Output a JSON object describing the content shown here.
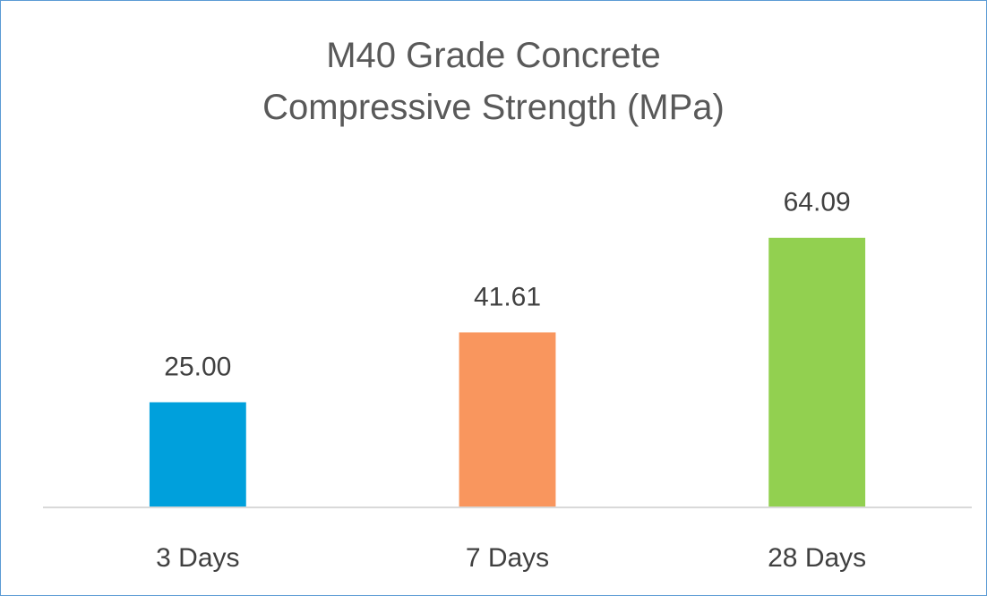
{
  "chart_data": {
    "type": "bar",
    "title": "M40 Grade Concrete Compressive Strength (MPa)",
    "categories": [
      "3 Days",
      "7 Days",
      "28 Days"
    ],
    "values": [
      25.0,
      41.61,
      64.09
    ],
    "value_labels": [
      "25.00",
      "41.61",
      "64.09"
    ],
    "colors": [
      "#00a0dc",
      "#f9965e",
      "#92d050"
    ],
    "ylim": [
      0,
      70
    ]
  }
}
